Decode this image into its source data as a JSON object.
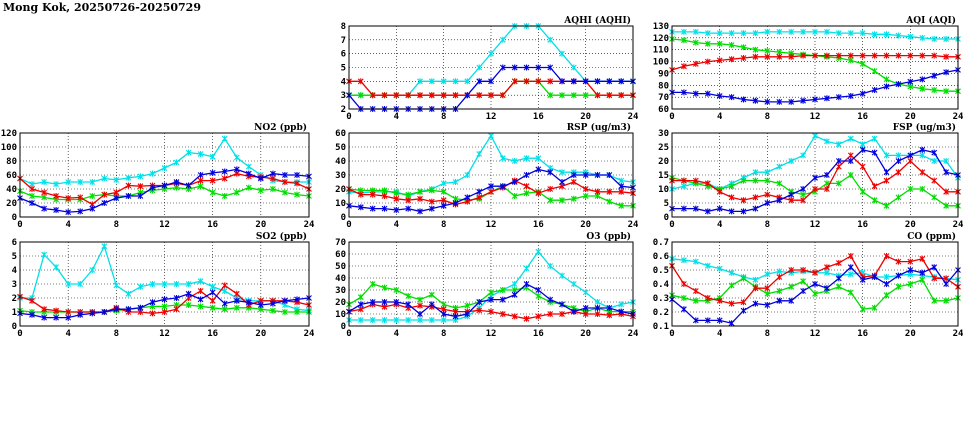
{
  "page": {
    "title": "Mong Kok, 20250726-20250729"
  },
  "colors": {
    "series_1": "#00e0e8",
    "series_2": "#00dd00",
    "series_3": "#ee0000",
    "series_4": "#0000dd"
  },
  "chart_data": [
    {
      "id": "aqhi",
      "type": "line",
      "title": "AQHI (AQHI)",
      "xlim": [
        0,
        24
      ],
      "xticks": [
        0,
        4,
        8,
        12,
        16,
        20,
        24
      ],
      "ylim": [
        2,
        8
      ],
      "yticks": [
        2,
        3,
        4,
        5,
        6,
        7,
        8
      ],
      "grid": true,
      "series": [
        {
          "color": "#00e0e8",
          "values": [
            3,
            3,
            3,
            3,
            3,
            3,
            4,
            4,
            4,
            4,
            4,
            5,
            6,
            7,
            8,
            8,
            8,
            7,
            6,
            5,
            4,
            4,
            4,
            4,
            4
          ]
        },
        {
          "color": "#00dd00",
          "values": [
            3,
            3,
            3,
            3,
            3,
            3,
            3,
            3,
            3,
            3,
            3,
            3,
            3,
            3,
            4,
            4,
            4,
            3,
            3,
            3,
            3,
            3,
            3,
            3,
            3
          ]
        },
        {
          "color": "#ee0000",
          "values": [
            4,
            4,
            3,
            3,
            3,
            3,
            3,
            3,
            3,
            3,
            3,
            3,
            3,
            3,
            4,
            4,
            4,
            4,
            4,
            4,
            4,
            3,
            3,
            3,
            3
          ]
        },
        {
          "color": "#0000dd",
          "values": [
            3,
            2,
            2,
            2,
            2,
            2,
            2,
            2,
            2,
            2,
            3,
            4,
            4,
            5,
            5,
            5,
            5,
            5,
            4,
            4,
            4,
            4,
            4,
            4,
            4
          ]
        }
      ]
    },
    {
      "id": "aqi",
      "type": "line",
      "title": "AQI (AQI)",
      "xlim": [
        0,
        24
      ],
      "xticks": [
        0,
        4,
        8,
        12,
        16,
        20,
        24
      ],
      "ylim": [
        60,
        130
      ],
      "yticks": [
        60,
        70,
        80,
        90,
        100,
        110,
        120,
        130
      ],
      "grid": true,
      "series": [
        {
          "color": "#00e0e8",
          "values": [
            125,
            125,
            125,
            124,
            124,
            124,
            124,
            124,
            125,
            125,
            125,
            125,
            125,
            125,
            124,
            124,
            124,
            123,
            123,
            122,
            121,
            120,
            119,
            119,
            119
          ]
        },
        {
          "color": "#00dd00",
          "values": [
            119,
            118,
            116,
            115,
            115,
            114,
            112,
            110,
            109,
            108,
            107,
            106,
            105,
            104,
            103,
            101,
            98,
            92,
            85,
            81,
            79,
            77,
            76,
            75,
            75
          ]
        },
        {
          "color": "#ee0000",
          "values": [
            93,
            96,
            98,
            100,
            101,
            102,
            103,
            104,
            104,
            104,
            104,
            105,
            105,
            105,
            105,
            105,
            105,
            105,
            105,
            105,
            105,
            105,
            105,
            104,
            104
          ]
        },
        {
          "color": "#0000dd",
          "values": [
            74,
            74,
            73,
            73,
            71,
            70,
            68,
            67,
            66,
            66,
            66,
            67,
            68,
            69,
            70,
            71,
            73,
            76,
            79,
            81,
            83,
            85,
            88,
            91,
            93
          ]
        }
      ]
    },
    {
      "id": "no2",
      "type": "line",
      "title": "NO2 (ppb)",
      "xlim": [
        0,
        24
      ],
      "xticks": [
        0,
        4,
        8,
        12,
        16,
        20,
        24
      ],
      "ylim": [
        0,
        120
      ],
      "yticks": [
        0,
        20,
        40,
        60,
        80,
        100,
        120
      ],
      "grid": true,
      "series": [
        {
          "color": "#00e0e8",
          "values": [
            55,
            47,
            50,
            47,
            50,
            50,
            50,
            55,
            53,
            56,
            58,
            62,
            70,
            78,
            92,
            90,
            86,
            112,
            85,
            72,
            60,
            52,
            50,
            50,
            50
          ]
        },
        {
          "color": "#00dd00",
          "values": [
            37,
            30,
            28,
            25,
            25,
            25,
            30,
            32,
            30,
            30,
            35,
            38,
            40,
            42,
            40,
            44,
            35,
            30,
            35,
            42,
            38,
            40,
            35,
            32,
            30
          ]
        },
        {
          "color": "#ee0000",
          "values": [
            55,
            40,
            35,
            30,
            27,
            28,
            18,
            32,
            35,
            45,
            44,
            45,
            45,
            48,
            45,
            52,
            52,
            55,
            62,
            58,
            57,
            55,
            50,
            48,
            40
          ]
        },
        {
          "color": "#0000dd",
          "values": [
            27,
            20,
            12,
            10,
            7,
            8,
            12,
            20,
            27,
            30,
            30,
            42,
            45,
            50,
            45,
            60,
            63,
            65,
            68,
            62,
            55,
            62,
            60,
            60,
            58
          ]
        }
      ]
    },
    {
      "id": "rsp",
      "type": "line",
      "title": "RSP (ug/m3)",
      "xlim": [
        0,
        24
      ],
      "xticks": [
        0,
        4,
        8,
        12,
        16,
        20,
        24
      ],
      "ylim": [
        0,
        60
      ],
      "yticks": [
        0,
        10,
        20,
        30,
        40,
        50,
        60
      ],
      "grid": true,
      "series": [
        {
          "color": "#00e0e8",
          "values": [
            18,
            17,
            18,
            18,
            18,
            15,
            18,
            20,
            24,
            25,
            30,
            45,
            58,
            42,
            40,
            42,
            42,
            35,
            32,
            32,
            32,
            30,
            30,
            26,
            25
          ]
        },
        {
          "color": "#00dd00",
          "values": [
            20,
            19,
            19,
            19,
            17,
            16,
            18,
            19,
            18,
            13,
            12,
            13,
            18,
            22,
            15,
            17,
            18,
            12,
            12,
            13,
            15,
            15,
            11,
            8,
            8
          ]
        },
        {
          "color": "#ee0000",
          "values": [
            20,
            16,
            16,
            15,
            13,
            12,
            13,
            11,
            12,
            9,
            11,
            14,
            18,
            21,
            26,
            22,
            17,
            20,
            22,
            25,
            20,
            18,
            18,
            18,
            17
          ]
        },
        {
          "color": "#0000dd",
          "values": [
            8,
            7,
            6,
            6,
            5,
            6,
            4,
            6,
            8,
            10,
            14,
            18,
            22,
            22,
            25,
            30,
            34,
            32,
            25,
            30,
            30,
            30,
            30,
            22,
            21
          ]
        }
      ]
    },
    {
      "id": "fsp",
      "type": "line",
      "title": "FSP (ug/m3)",
      "xlim": [
        0,
        24
      ],
      "xticks": [
        0,
        4,
        8,
        12,
        16,
        20,
        24
      ],
      "ylim": [
        0,
        30
      ],
      "yticks": [
        0,
        5,
        10,
        15,
        20,
        25,
        30
      ],
      "grid": true,
      "series": [
        {
          "color": "#00e0e8",
          "values": [
            10,
            11,
            12,
            12,
            10,
            12,
            14,
            16,
            16,
            18,
            20,
            22,
            29,
            27,
            26,
            28,
            26,
            28,
            22,
            22,
            22,
            22,
            20,
            20,
            14
          ]
        },
        {
          "color": "#00dd00",
          "values": [
            14,
            13,
            12,
            11,
            10,
            11,
            13,
            13,
            13,
            12,
            9,
            8,
            9,
            12,
            12,
            15,
            9,
            6,
            4,
            7,
            10,
            10,
            7,
            4,
            4
          ]
        },
        {
          "color": "#ee0000",
          "values": [
            13,
            13,
            13,
            12,
            9,
            7,
            6,
            7,
            8,
            7,
            6,
            6,
            10,
            10,
            18,
            22,
            18,
            11,
            13,
            16,
            20,
            16,
            13,
            9,
            9
          ]
        },
        {
          "color": "#0000dd",
          "values": [
            3,
            3,
            3,
            2,
            3,
            2,
            2,
            3,
            5,
            6,
            8,
            10,
            14,
            15,
            20,
            20,
            24,
            23,
            16,
            20,
            22,
            24,
            23,
            16,
            15
          ]
        }
      ]
    },
    {
      "id": "so2",
      "type": "line",
      "title": "SO2 (ppb)",
      "xlim": [
        0,
        24
      ],
      "xticks": [
        0,
        4,
        8,
        12,
        16,
        20,
        24
      ],
      "ylim": [
        0,
        6
      ],
      "yticks": [
        0,
        1,
        2,
        3,
        4,
        5,
        6
      ],
      "grid": true,
      "series": [
        {
          "color": "#00e0e8",
          "values": [
            2,
            2,
            5.1,
            4.2,
            3,
            3,
            4,
            5.7,
            2.9,
            2.3,
            2.8,
            3,
            3,
            3,
            3,
            3.2,
            2.8,
            2.5,
            2,
            1.8,
            1.8,
            1.8,
            1.5,
            1.2,
            1.1
          ]
        },
        {
          "color": "#00dd00",
          "values": [
            1.1,
            1,
            1,
            1,
            1,
            1,
            1,
            1,
            1.1,
            1.2,
            1.3,
            1.4,
            1.4,
            1.5,
            1.5,
            1.4,
            1.3,
            1.2,
            1.3,
            1.3,
            1.2,
            1.1,
            1,
            1,
            1
          ]
        },
        {
          "color": "#ee0000",
          "values": [
            2.1,
            1.8,
            1.2,
            1.1,
            1,
            1,
            1,
            1,
            1.3,
            1,
            1,
            0.9,
            1,
            1.2,
            2,
            2.5,
            1.8,
            2.9,
            2.3,
            1.5,
            1.8,
            1.8,
            1.8,
            1.7,
            1.5
          ]
        },
        {
          "color": "#0000dd",
          "values": [
            0.9,
            0.8,
            0.6,
            0.6,
            0.6,
            0.8,
            0.9,
            1,
            1.2,
            1.2,
            1.3,
            1.7,
            1.9,
            2,
            2.3,
            1.9,
            2.4,
            1.6,
            1.8,
            1.7,
            1.5,
            1.6,
            1.8,
            1.9,
            2
          ]
        }
      ]
    },
    {
      "id": "o3",
      "type": "line",
      "title": "O3 (ppb)",
      "xlim": [
        0,
        24
      ],
      "xticks": [
        0,
        4,
        8,
        12,
        16,
        20,
        24
      ],
      "ylim": [
        0,
        70
      ],
      "yticks": [
        0,
        10,
        20,
        30,
        40,
        50,
        60,
        70
      ],
      "grid": true,
      "series": [
        {
          "color": "#00e0e8",
          "values": [
            5,
            5,
            5,
            5,
            5,
            5,
            5,
            5,
            5,
            5,
            8,
            15,
            25,
            30,
            35,
            48,
            62,
            50,
            42,
            35,
            28,
            20,
            15,
            18,
            20
          ]
        },
        {
          "color": "#00dd00",
          "values": [
            18,
            24,
            35,
            32,
            30,
            25,
            22,
            26,
            18,
            15,
            17,
            20,
            28,
            30,
            30,
            32,
            25,
            20,
            18,
            15,
            12,
            15,
            12,
            12,
            12
          ]
        },
        {
          "color": "#ee0000",
          "values": [
            12,
            14,
            18,
            16,
            18,
            15,
            17,
            16,
            14,
            12,
            12,
            13,
            12,
            10,
            8,
            6,
            8,
            10,
            10,
            12,
            10,
            10,
            9,
            10,
            8
          ]
        },
        {
          "color": "#0000dd",
          "values": [
            12,
            18,
            20,
            20,
            20,
            18,
            10,
            18,
            10,
            8,
            10,
            20,
            22,
            22,
            26,
            35,
            30,
            22,
            18,
            12,
            15,
            15,
            15,
            12,
            10
          ]
        }
      ]
    },
    {
      "id": "co",
      "type": "line",
      "title": "CO (ppm)",
      "xlim": [
        0,
        24
      ],
      "xticks": [
        0,
        4,
        8,
        12,
        16,
        20,
        24
      ],
      "ylim": [
        0.1,
        0.7
      ],
      "yticks": [
        0.1,
        0.2,
        0.3,
        0.4,
        0.5,
        0.6,
        0.7
      ],
      "grid": true,
      "series": [
        {
          "color": "#00e0e8",
          "values": [
            0.58,
            0.57,
            0.56,
            0.53,
            0.51,
            0.48,
            0.45,
            0.43,
            0.47,
            0.49,
            0.48,
            0.49,
            0.48,
            0.48,
            0.46,
            0.47,
            0.48,
            0.45,
            0.45,
            0.46,
            0.47,
            0.46,
            0.45,
            0.44,
            0.43
          ]
        },
        {
          "color": "#00dd00",
          "values": [
            0.32,
            0.3,
            0.28,
            0.28,
            0.3,
            0.39,
            0.44,
            0.38,
            0.33,
            0.35,
            0.38,
            0.42,
            0.33,
            0.35,
            0.38,
            0.34,
            0.22,
            0.23,
            0.32,
            0.38,
            0.4,
            0.43,
            0.28,
            0.28,
            0.3
          ]
        },
        {
          "color": "#ee0000",
          "values": [
            0.53,
            0.4,
            0.35,
            0.3,
            0.28,
            0.26,
            0.27,
            0.37,
            0.37,
            0.45,
            0.5,
            0.5,
            0.48,
            0.52,
            0.55,
            0.6,
            0.45,
            0.46,
            0.6,
            0.56,
            0.56,
            0.58,
            0.44,
            0.44,
            0.38
          ]
        },
        {
          "color": "#0000dd",
          "values": [
            0.29,
            0.22,
            0.14,
            0.14,
            0.14,
            0.12,
            0.21,
            0.26,
            0.25,
            0.28,
            0.28,
            0.35,
            0.4,
            0.37,
            0.44,
            0.52,
            0.43,
            0.45,
            0.4,
            0.46,
            0.5,
            0.48,
            0.52,
            0.4,
            0.5
          ]
        }
      ]
    }
  ]
}
